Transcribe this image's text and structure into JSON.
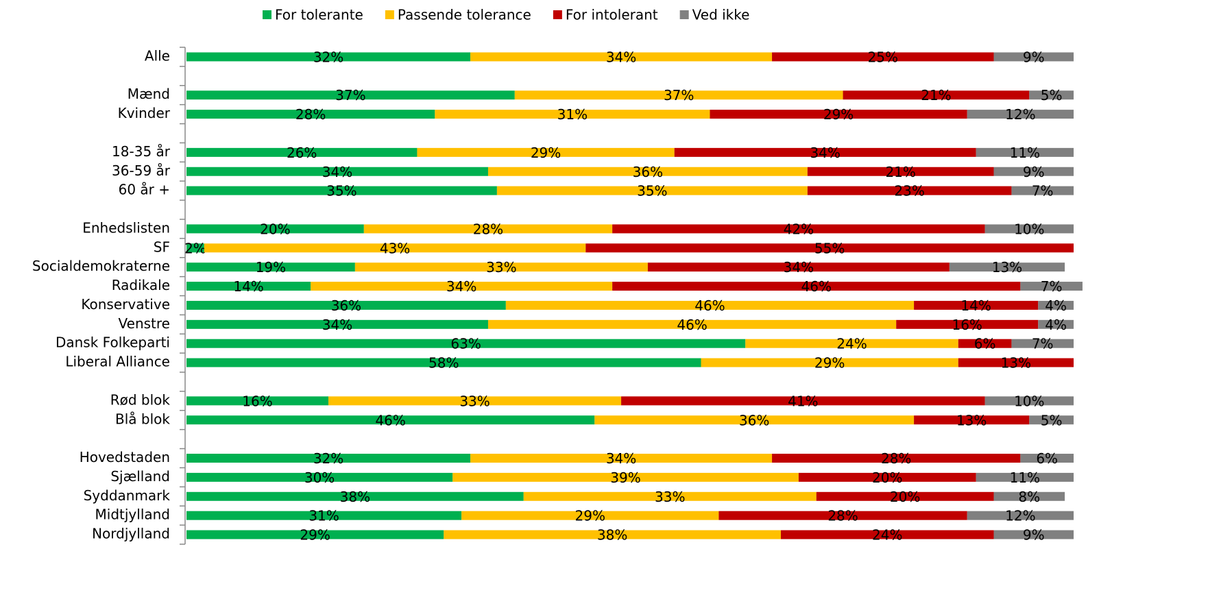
{
  "chart_data": {
    "type": "stacked-barh",
    "categories": [
      "Alle",
      null,
      "Mænd",
      "Kvinder",
      null,
      "18-35 år",
      "36-59 år",
      "60 år +",
      null,
      "Enhedslisten",
      "SF",
      "Socialdemokraterne",
      "Radikale",
      "Konservative",
      "Venstre",
      "Dansk Folkeparti",
      "Liberal Alliance",
      null,
      "Rød blok",
      "Blå blok",
      null,
      "Hovedstaden",
      "Sjælland",
      "Syddanmark",
      "Midtjylland",
      "Nordjylland"
    ],
    "xlim": [
      0,
      100
    ],
    "legend": "top",
    "series": [
      {
        "name": "For tolerante",
        "color": "#00b050",
        "values": [
          32,
          null,
          37,
          28,
          null,
          26,
          34,
          35,
          null,
          20,
          2,
          19,
          14,
          36,
          34,
          63,
          58,
          null,
          16,
          46,
          null,
          32,
          30,
          38,
          31,
          29
        ],
        "value_labels": [
          "32%",
          null,
          "37%",
          "28%",
          null,
          "26%",
          "34%",
          "35%",
          null,
          "20%",
          "2%",
          "19%",
          "14%",
          "36%",
          "34%",
          "63%",
          "58%",
          null,
          "16%",
          "46%",
          null,
          "32%",
          "30%",
          "38%",
          "31%",
          "29%"
        ]
      },
      {
        "name": "Passende tolerance",
        "color": "#ffc000",
        "values": [
          34,
          null,
          37,
          31,
          null,
          29,
          36,
          35,
          null,
          28,
          43,
          33,
          34,
          46,
          46,
          24,
          29,
          null,
          33,
          36,
          null,
          34,
          39,
          33,
          29,
          38
        ],
        "value_labels": [
          "34%",
          null,
          "37%",
          "31%",
          null,
          "29%",
          "36%",
          "35%",
          null,
          "28%",
          "43%",
          "33%",
          "34%",
          "46%",
          "46%",
          "24%",
          "29%",
          null,
          "33%",
          "36%",
          null,
          "34%",
          "39%",
          "33%",
          "29%",
          "38%"
        ]
      },
      {
        "name": "For intolerant",
        "color": "#c00000",
        "values": [
          25,
          null,
          21,
          29,
          null,
          34,
          21,
          23,
          null,
          42,
          55,
          34,
          46,
          14,
          16,
          6,
          13,
          null,
          41,
          13,
          null,
          28,
          20,
          20,
          28,
          24
        ],
        "value_labels": [
          "25%",
          null,
          "21%",
          "29%",
          null,
          "34%",
          "21%",
          "23%",
          null,
          "42%",
          "55%",
          "34%",
          "46%",
          "14%",
          "16%",
          "6%",
          "13%",
          null,
          "41%",
          "13%",
          null,
          "28%",
          "20%",
          "20%",
          "28%",
          "24%"
        ]
      },
      {
        "name": "Ved ikke",
        "color": "#808080",
        "values": [
          9,
          null,
          5,
          12,
          null,
          11,
          9,
          7,
          null,
          10,
          null,
          13,
          7,
          4,
          4,
          7,
          null,
          null,
          10,
          5,
          null,
          6,
          11,
          8,
          12,
          9
        ],
        "value_labels": [
          "9%",
          null,
          "5%",
          "12%",
          null,
          "11%",
          "9%",
          "7%",
          null,
          "10%",
          null,
          "13%",
          "7%",
          "4%",
          "4%",
          "7%",
          null,
          null,
          "10%",
          "5%",
          null,
          "6%",
          "11%",
          "8%",
          "12%",
          "9%"
        ]
      }
    ]
  }
}
